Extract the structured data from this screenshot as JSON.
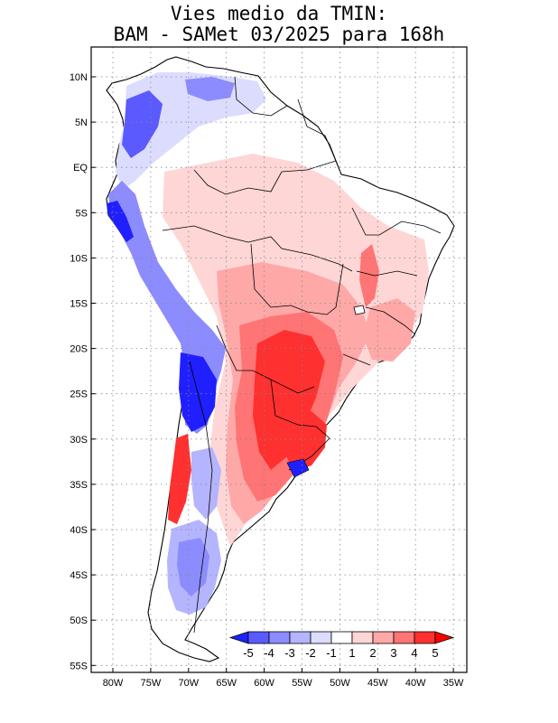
{
  "title": {
    "line1": "Vies medio da TMIN:",
    "line2": "BAM - SAMet 03/2025  para 168h"
  },
  "map": {
    "region": "South America",
    "lat_labels": [
      "10N",
      "5N",
      "EQ",
      "5S",
      "10S",
      "15S",
      "20S",
      "25S",
      "30S",
      "35S",
      "40S",
      "45S",
      "50S",
      "55S"
    ],
    "lon_labels": [
      "80W",
      "75W",
      "70W",
      "65W",
      "60W",
      "55W",
      "50W",
      "45W",
      "40W",
      "35W"
    ]
  },
  "colorbar": {
    "labels": [
      "-5",
      "-4",
      "-3",
      "-2",
      "-1",
      "1",
      "2",
      "3",
      "4",
      "5"
    ],
    "colors": [
      "#1f1fff",
      "#5a5aff",
      "#8c8cff",
      "#b4b4ff",
      "#dcdcff",
      "#ffffff",
      "#ffd6d6",
      "#ffa8a8",
      "#ff7474",
      "#ff3030",
      "#ff0000"
    ]
  }
}
